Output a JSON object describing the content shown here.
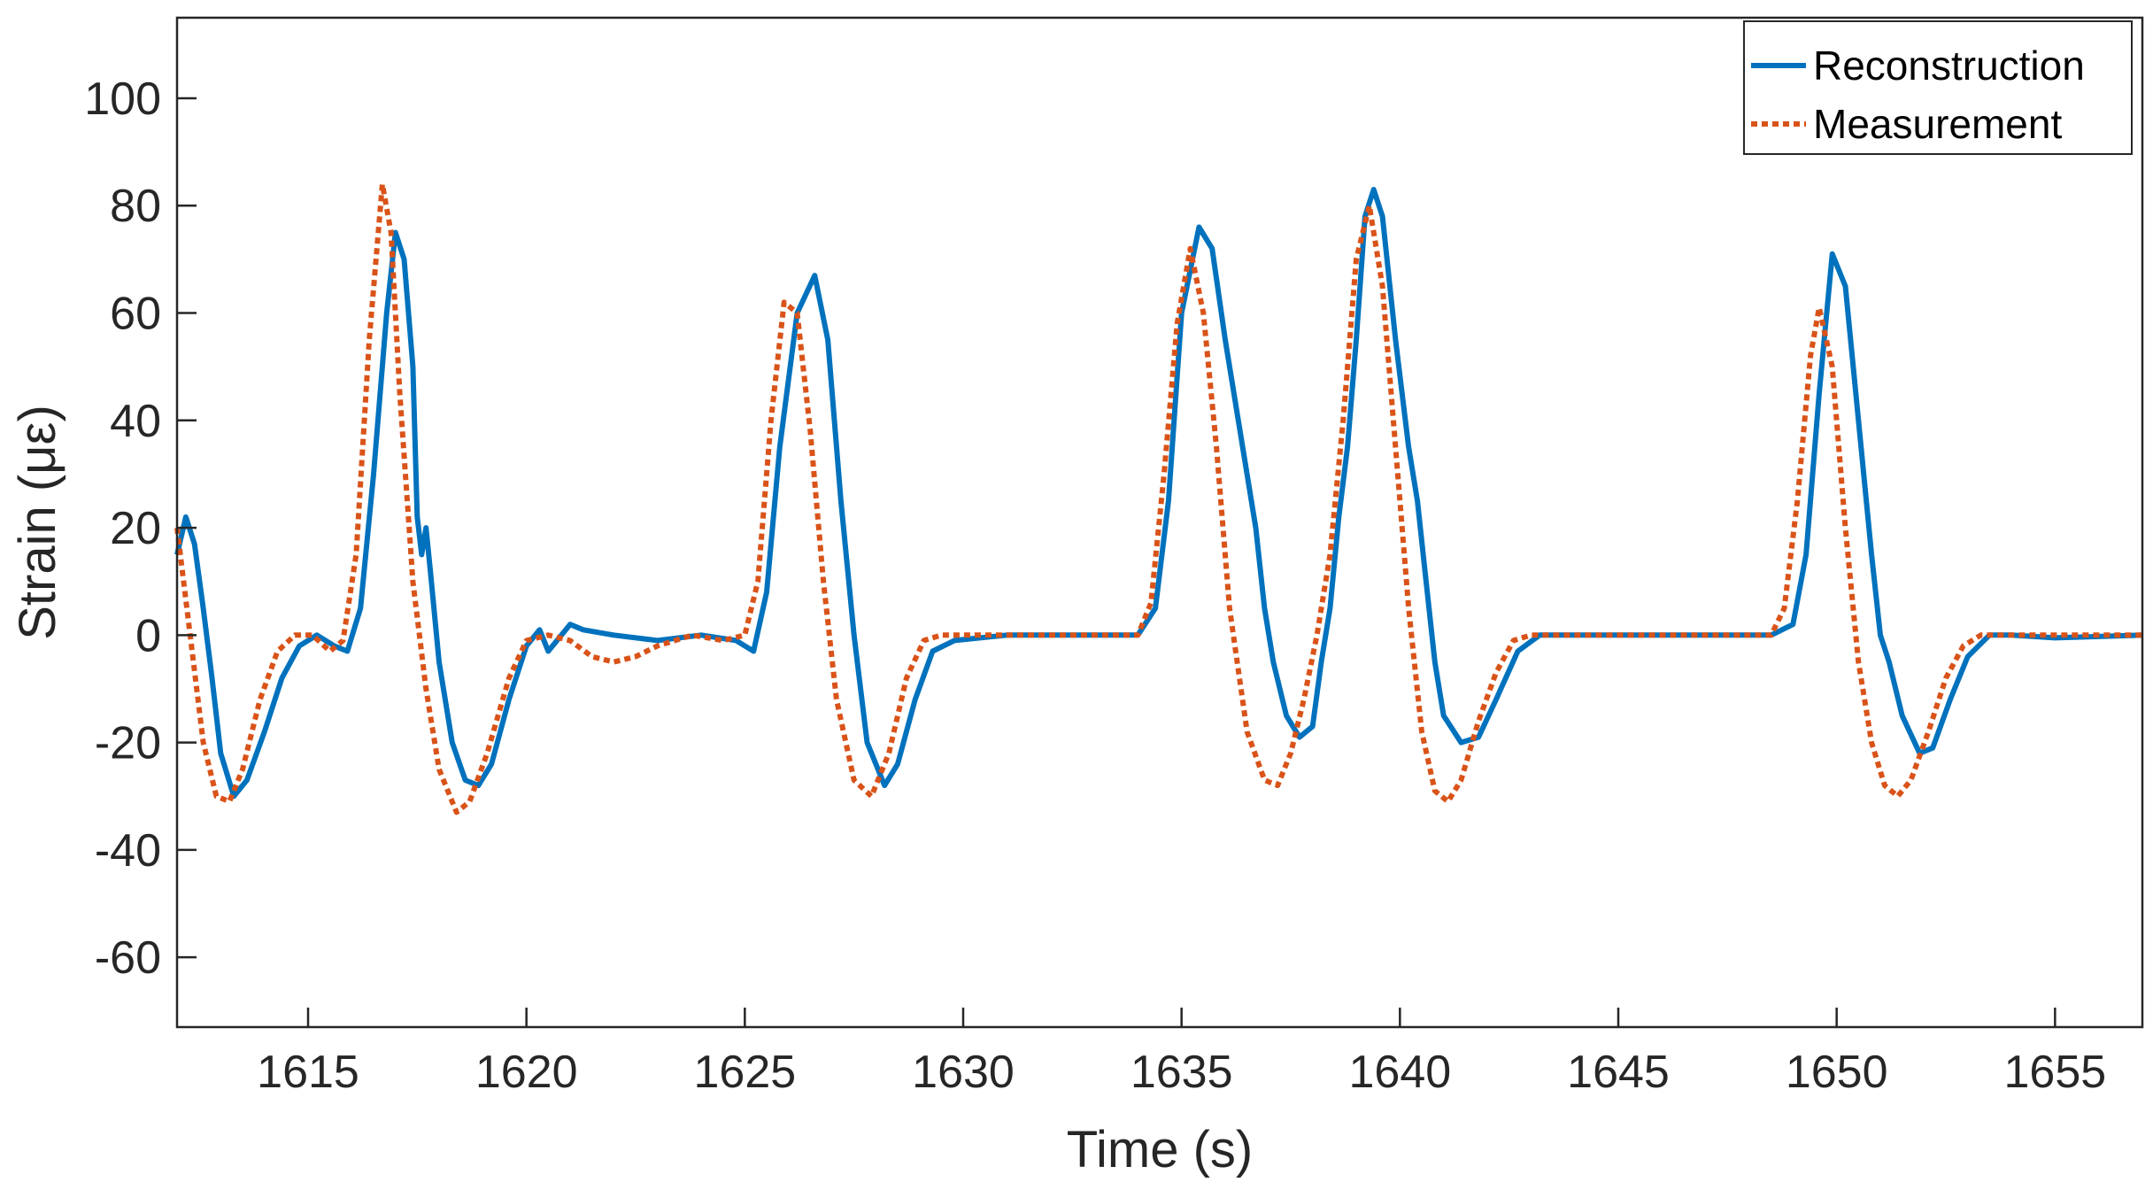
{
  "chart_data": {
    "type": "line",
    "xlabel": "Time (s)",
    "ylabel": "Strain (με)",
    "xlim": [
      1612,
      1657
    ],
    "ylim": [
      -73,
      115
    ],
    "xticks": [
      1615,
      1620,
      1625,
      1630,
      1635,
      1640,
      1645,
      1650,
      1655
    ],
    "yticks": [
      -60,
      -40,
      -20,
      0,
      20,
      40,
      60,
      80,
      100
    ],
    "grid": false,
    "legend_position": "top-right",
    "series": [
      {
        "name": "Reconstruction",
        "color": "#0072BD",
        "style": "solid",
        "points": [
          [
            1612.0,
            15
          ],
          [
            1612.2,
            22
          ],
          [
            1612.4,
            17
          ],
          [
            1612.6,
            5
          ],
          [
            1612.8,
            -8
          ],
          [
            1613.0,
            -22
          ],
          [
            1613.3,
            -30
          ],
          [
            1613.6,
            -27
          ],
          [
            1614.0,
            -18
          ],
          [
            1614.4,
            -8
          ],
          [
            1614.8,
            -2
          ],
          [
            1615.2,
            0
          ],
          [
            1615.6,
            -2
          ],
          [
            1615.9,
            -3
          ],
          [
            1616.2,
            5
          ],
          [
            1616.5,
            30
          ],
          [
            1616.8,
            60
          ],
          [
            1617.0,
            75
          ],
          [
            1617.2,
            70
          ],
          [
            1617.4,
            50
          ],
          [
            1617.5,
            22
          ],
          [
            1617.6,
            15
          ],
          [
            1617.7,
            20
          ],
          [
            1617.8,
            12
          ],
          [
            1618.0,
            -5
          ],
          [
            1618.3,
            -20
          ],
          [
            1618.6,
            -27
          ],
          [
            1618.9,
            -28
          ],
          [
            1619.2,
            -24
          ],
          [
            1619.6,
            -12
          ],
          [
            1620.0,
            -2
          ],
          [
            1620.3,
            1
          ],
          [
            1620.5,
            -3
          ],
          [
            1620.7,
            -1
          ],
          [
            1621.0,
            2
          ],
          [
            1621.3,
            1
          ],
          [
            1622.0,
            0
          ],
          [
            1623.0,
            -1
          ],
          [
            1624.0,
            0
          ],
          [
            1624.8,
            -1
          ],
          [
            1625.2,
            -3
          ],
          [
            1625.5,
            8
          ],
          [
            1625.8,
            35
          ],
          [
            1626.2,
            60
          ],
          [
            1626.6,
            67
          ],
          [
            1626.9,
            55
          ],
          [
            1627.2,
            25
          ],
          [
            1627.5,
            0
          ],
          [
            1627.8,
            -20
          ],
          [
            1628.2,
            -28
          ],
          [
            1628.5,
            -24
          ],
          [
            1628.9,
            -12
          ],
          [
            1629.3,
            -3
          ],
          [
            1629.8,
            -1
          ],
          [
            1631.0,
            0
          ],
          [
            1633.0,
            0
          ],
          [
            1634.0,
            0
          ],
          [
            1634.4,
            5
          ],
          [
            1634.7,
            25
          ],
          [
            1635.0,
            60
          ],
          [
            1635.4,
            76
          ],
          [
            1635.7,
            72
          ],
          [
            1636.0,
            55
          ],
          [
            1636.4,
            35
          ],
          [
            1636.7,
            20
          ],
          [
            1636.9,
            5
          ],
          [
            1637.1,
            -5
          ],
          [
            1637.4,
            -15
          ],
          [
            1637.7,
            -19
          ],
          [
            1638.0,
            -17
          ],
          [
            1638.2,
            -5
          ],
          [
            1638.4,
            5
          ],
          [
            1638.6,
            22
          ],
          [
            1638.8,
            35
          ],
          [
            1639.0,
            55
          ],
          [
            1639.2,
            78
          ],
          [
            1639.4,
            83
          ],
          [
            1639.6,
            78
          ],
          [
            1639.9,
            55
          ],
          [
            1640.2,
            35
          ],
          [
            1640.4,
            25
          ],
          [
            1640.6,
            10
          ],
          [
            1640.8,
            -5
          ],
          [
            1641.0,
            -15
          ],
          [
            1641.4,
            -20
          ],
          [
            1641.8,
            -19
          ],
          [
            1642.2,
            -12
          ],
          [
            1642.7,
            -3
          ],
          [
            1643.2,
            0
          ],
          [
            1645.0,
            0
          ],
          [
            1647.0,
            0
          ],
          [
            1648.5,
            0
          ],
          [
            1649.0,
            2
          ],
          [
            1649.3,
            15
          ],
          [
            1649.6,
            45
          ],
          [
            1649.9,
            71
          ],
          [
            1650.2,
            65
          ],
          [
            1650.5,
            40
          ],
          [
            1650.8,
            15
          ],
          [
            1651.0,
            0
          ],
          [
            1651.2,
            -5
          ],
          [
            1651.5,
            -15
          ],
          [
            1651.9,
            -22
          ],
          [
            1652.2,
            -21
          ],
          [
            1652.6,
            -12
          ],
          [
            1653.0,
            -4
          ],
          [
            1653.5,
            0
          ],
          [
            1654.0,
            0
          ],
          [
            1655.0,
            -0.5
          ],
          [
            1657.0,
            0
          ]
        ]
      },
      {
        "name": "Measurement",
        "color": "#D95319",
        "style": "dotted",
        "points": [
          [
            1612.0,
            20
          ],
          [
            1612.3,
            0
          ],
          [
            1612.6,
            -20
          ],
          [
            1612.9,
            -30
          ],
          [
            1613.2,
            -31
          ],
          [
            1613.5,
            -25
          ],
          [
            1613.9,
            -12
          ],
          [
            1614.3,
            -3
          ],
          [
            1614.7,
            0
          ],
          [
            1615.1,
            0
          ],
          [
            1615.5,
            -3
          ],
          [
            1615.8,
            -1
          ],
          [
            1616.1,
            15
          ],
          [
            1616.4,
            55
          ],
          [
            1616.7,
            84
          ],
          [
            1616.9,
            75
          ],
          [
            1617.1,
            45
          ],
          [
            1617.4,
            10
          ],
          [
            1617.7,
            -10
          ],
          [
            1618.0,
            -25
          ],
          [
            1618.4,
            -33
          ],
          [
            1618.7,
            -31
          ],
          [
            1619.1,
            -22
          ],
          [
            1619.6,
            -8
          ],
          [
            1620.0,
            -1
          ],
          [
            1620.5,
            0
          ],
          [
            1621.0,
            -1
          ],
          [
            1621.5,
            -4
          ],
          [
            1622.0,
            -5
          ],
          [
            1622.5,
            -4
          ],
          [
            1623.0,
            -2
          ],
          [
            1623.8,
            0
          ],
          [
            1624.5,
            -1
          ],
          [
            1625.0,
            0
          ],
          [
            1625.3,
            10
          ],
          [
            1625.6,
            40
          ],
          [
            1625.9,
            62
          ],
          [
            1626.2,
            60
          ],
          [
            1626.5,
            38
          ],
          [
            1626.8,
            10
          ],
          [
            1627.1,
            -12
          ],
          [
            1627.5,
            -27
          ],
          [
            1627.9,
            -30
          ],
          [
            1628.3,
            -22
          ],
          [
            1628.7,
            -8
          ],
          [
            1629.1,
            -1
          ],
          [
            1629.5,
            0
          ],
          [
            1631.0,
            0
          ],
          [
            1633.0,
            0
          ],
          [
            1634.0,
            0
          ],
          [
            1634.3,
            6
          ],
          [
            1634.6,
            30
          ],
          [
            1634.9,
            58
          ],
          [
            1635.2,
            72
          ],
          [
            1635.5,
            60
          ],
          [
            1635.8,
            35
          ],
          [
            1636.1,
            5
          ],
          [
            1636.5,
            -18
          ],
          [
            1636.9,
            -27
          ],
          [
            1637.2,
            -28
          ],
          [
            1637.5,
            -22
          ],
          [
            1637.8,
            -12
          ],
          [
            1638.1,
            0
          ],
          [
            1638.4,
            15
          ],
          [
            1638.7,
            40
          ],
          [
            1639.0,
            70
          ],
          [
            1639.3,
            80
          ],
          [
            1639.6,
            65
          ],
          [
            1639.9,
            35
          ],
          [
            1640.2,
            5
          ],
          [
            1640.5,
            -18
          ],
          [
            1640.8,
            -29
          ],
          [
            1641.1,
            -31
          ],
          [
            1641.4,
            -27
          ],
          [
            1641.8,
            -16
          ],
          [
            1642.2,
            -7
          ],
          [
            1642.6,
            -1
          ],
          [
            1643.0,
            0
          ],
          [
            1645.0,
            0
          ],
          [
            1648.0,
            0
          ],
          [
            1648.5,
            0
          ],
          [
            1648.8,
            5
          ],
          [
            1649.1,
            25
          ],
          [
            1649.4,
            52
          ],
          [
            1649.6,
            61
          ],
          [
            1649.9,
            50
          ],
          [
            1650.2,
            20
          ],
          [
            1650.5,
            -5
          ],
          [
            1650.8,
            -20
          ],
          [
            1651.1,
            -28
          ],
          [
            1651.4,
            -30
          ],
          [
            1651.7,
            -27
          ],
          [
            1652.1,
            -18
          ],
          [
            1652.5,
            -8
          ],
          [
            1652.9,
            -2
          ],
          [
            1653.3,
            0
          ],
          [
            1654.0,
            0
          ],
          [
            1657.0,
            0
          ]
        ]
      }
    ]
  }
}
